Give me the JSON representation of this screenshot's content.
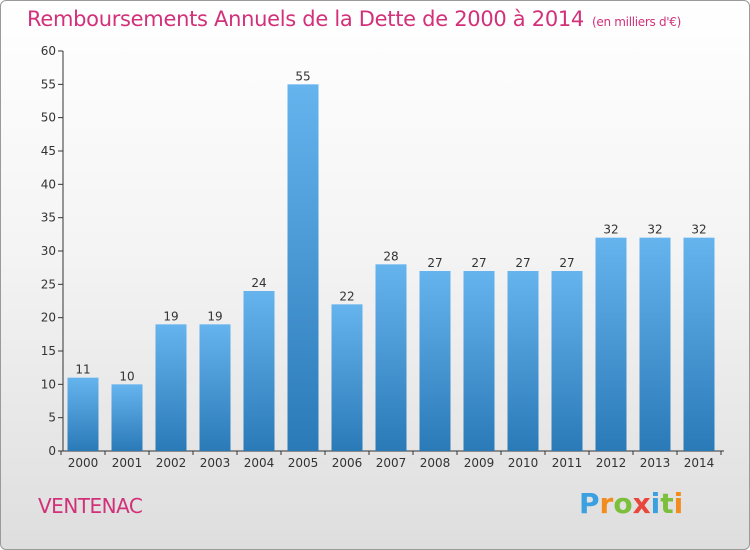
{
  "title": "Remboursements Annuels de la Dette de 2000 à 2014",
  "subtitle": "(en milliers d'€)",
  "commune": "VENTENAC",
  "logo": {
    "text": "Proxiti",
    "letters": [
      "P",
      "r",
      "o",
      "x",
      "i",
      "t",
      "i"
    ],
    "colors": [
      "#3aa0e0",
      "#f28c1e",
      "#7cbf3a",
      "#e8473a",
      "#3aa0e0",
      "#7cbf3a",
      "#f28c1e"
    ]
  },
  "colors": {
    "title": "#d2317a",
    "bar_light": "#66b4ee",
    "bar_dark": "#2a7ab8",
    "axis": "#333333",
    "grid": "#cccccc"
  },
  "chart_data": {
    "type": "bar",
    "title": "Remboursements Annuels de la Dette de 2000 à 2014",
    "subtitle": "(en milliers d'€)",
    "xlabel": "",
    "ylabel": "",
    "categories": [
      "2000",
      "2001",
      "2002",
      "2003",
      "2004",
      "2005",
      "2006",
      "2007",
      "2008",
      "2009",
      "2010",
      "2011",
      "2012",
      "2013",
      "2014"
    ],
    "values": [
      11,
      10,
      19,
      19,
      24,
      55,
      22,
      28,
      27,
      27,
      27,
      27,
      32,
      32,
      32
    ],
    "data_labels": [
      "11",
      "10",
      "19",
      "19",
      "24",
      "55",
      "22",
      "28",
      "27",
      "27",
      "27",
      "27",
      "32",
      "32",
      "32"
    ],
    "ylim": [
      0,
      60
    ],
    "yticks": [
      0,
      5,
      10,
      15,
      20,
      25,
      30,
      35,
      40,
      45,
      50,
      55,
      60
    ],
    "grid": false,
    "legend": "none"
  }
}
